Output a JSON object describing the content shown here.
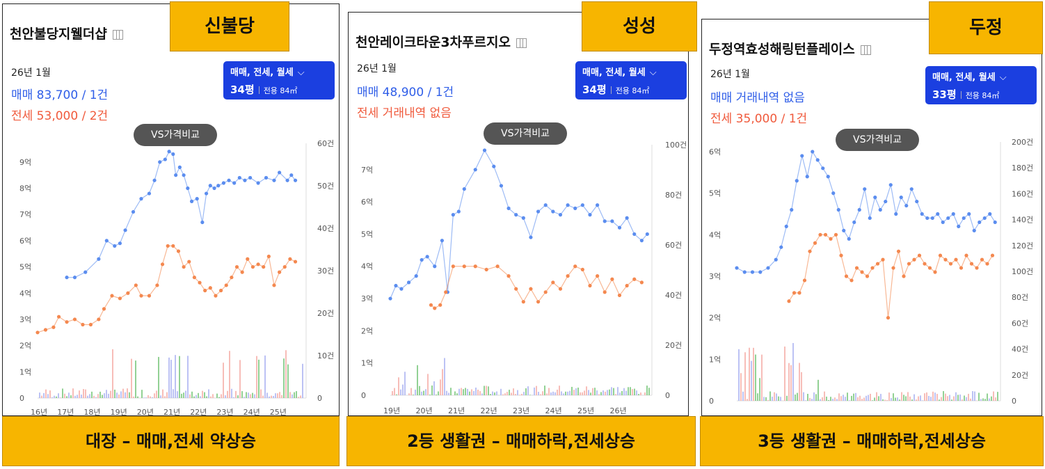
{
  "panels": [
    {
      "title": "천안불당지웰더샵",
      "tag": "신불당",
      "period": "26년 1월",
      "sale": "매매 83,700 / 1건",
      "jeonse": "전세 53,000 / 2건",
      "filter_type": "매매, 전세, 월세",
      "filter_py": "34평",
      "filter_area": "전용 84㎡",
      "vs": "VS가격비교",
      "caption": "대장 – 매매,전세 약상승"
    },
    {
      "title": "천안레이크타운3차푸르지오",
      "tag": "성성",
      "period": "26년 1월",
      "sale": "매매 48,900 / 1건",
      "jeonse": "전세 거래내역 없음",
      "filter_type": "매매, 전세, 월세",
      "filter_py": "34평",
      "filter_area": "전용 84㎡",
      "vs": "VS가격비교",
      "caption": "2등 생활권 – 매매하락,전세상승"
    },
    {
      "title": "두정역효성해링턴플레이스",
      "tag": "두정",
      "period": "26년 1월",
      "sale": "매매 거래내역 없음",
      "jeonse": "전세 35,000 / 1건",
      "filter_type": "매매, 전세, 월세",
      "filter_py": "33평",
      "filter_area": "전용 84㎡",
      "vs": "VS가격비교",
      "caption": "3등 생활권 – 매매하락,전세상승"
    }
  ],
  "chart_data": [
    {
      "type": "line",
      "colors": {
        "sale": "#5b8def",
        "jeonse": "#f4884f",
        "volume": [
          "#f4a7a0",
          "#a6aef0",
          "#6dc270"
        ]
      },
      "x_labels": [
        "16년",
        "17년",
        "18년",
        "19년",
        "20년",
        "21년",
        "22년",
        "23년",
        "24년",
        "25년"
      ],
      "x_range": [
        2016,
        2026
      ],
      "y_left_labels": [
        "0",
        "1억",
        "2억",
        "3억",
        "4억",
        "5억",
        "6억",
        "7억",
        "8억",
        "9억"
      ],
      "ylim_left": [
        0,
        9.5
      ],
      "y_right_labels": [
        "0",
        "10건",
        "20건",
        "30건",
        "40건",
        "50건",
        "60건"
      ],
      "ylim_right": [
        0,
        60
      ],
      "series": [
        {
          "name": "매매",
          "key": "sale",
          "x": [
            2017.1,
            2017.4,
            2017.8,
            2018.3,
            2018.6,
            2018.9,
            2019.1,
            2019.3,
            2019.6,
            2019.9,
            2020.2,
            2020.4,
            2020.6,
            2020.8,
            2020.95,
            2021.1,
            2021.2,
            2021.35,
            2021.5,
            2021.65,
            2021.8,
            2022.0,
            2022.2,
            2022.35,
            2022.5,
            2022.65,
            2022.8,
            2023.0,
            2023.2,
            2023.4,
            2023.6,
            2023.8,
            2024.0,
            2024.3,
            2024.6,
            2024.9,
            2025.1,
            2025.4,
            2025.55,
            2025.7
          ],
          "y": [
            4.6,
            4.6,
            4.8,
            5.3,
            6.0,
            5.8,
            5.9,
            6.4,
            7.1,
            7.6,
            7.8,
            8.3,
            9.0,
            9.1,
            9.4,
            9.3,
            8.5,
            8.8,
            8.5,
            8.0,
            7.5,
            7.6,
            6.7,
            7.8,
            8.1,
            8.0,
            8.1,
            8.2,
            8.3,
            8.2,
            8.4,
            8.3,
            8.4,
            8.2,
            8.4,
            8.3,
            8.6,
            8.3,
            8.5,
            8.3
          ]
        },
        {
          "name": "전세",
          "key": "jeonse",
          "x": [
            2016.0,
            2016.3,
            2016.6,
            2016.8,
            2017.1,
            2017.4,
            2017.7,
            2018.0,
            2018.3,
            2018.5,
            2018.8,
            2019.1,
            2019.4,
            2019.7,
            2019.9,
            2020.2,
            2020.5,
            2020.7,
            2020.9,
            2021.1,
            2021.3,
            2021.5,
            2021.7,
            2021.9,
            2022.1,
            2022.3,
            2022.5,
            2022.7,
            2022.9,
            2023.1,
            2023.3,
            2023.5,
            2023.7,
            2023.9,
            2024.1,
            2024.3,
            2024.5,
            2024.7,
            2024.9,
            2025.1,
            2025.3,
            2025.5,
            2025.7
          ],
          "y": [
            2.5,
            2.6,
            2.7,
            3.1,
            2.9,
            3.0,
            2.8,
            2.8,
            3.0,
            3.4,
            3.9,
            3.8,
            4.0,
            4.3,
            3.9,
            3.9,
            4.3,
            5.1,
            5.8,
            5.8,
            5.6,
            5.0,
            5.2,
            4.6,
            4.4,
            4.1,
            4.2,
            3.9,
            4.1,
            4.3,
            4.6,
            5.0,
            4.8,
            5.3,
            5.0,
            5.1,
            5.0,
            5.4,
            4.3,
            4.8,
            5.0,
            5.3,
            5.2
          ]
        }
      ]
    },
    {
      "type": "line",
      "colors": {
        "sale": "#5b8def",
        "jeonse": "#f4884f",
        "volume": [
          "#f4a7a0",
          "#a6aef0",
          "#6dc270"
        ]
      },
      "x_labels": [
        "19년",
        "20년",
        "21년",
        "22년",
        "23년",
        "24년",
        "25년",
        "26년"
      ],
      "x_range": [
        2019,
        2026
      ],
      "y_left_labels": [
        "0",
        "1억",
        "2억",
        "3억",
        "4억",
        "5억",
        "6억",
        "7억"
      ],
      "ylim_left": [
        0,
        7.6
      ],
      "y_right_labels": [
        "0",
        "20건",
        "40건",
        "60건",
        "80건",
        "100건"
      ],
      "ylim_right": [
        0,
        100
      ],
      "series": [
        {
          "name": "매매",
          "key": "sale",
          "x": [
            2019.0,
            2019.15,
            2019.3,
            2019.5,
            2019.7,
            2019.85,
            2020.0,
            2020.2,
            2020.4,
            2020.55,
            2020.7,
            2020.85,
            2021.0,
            2021.3,
            2021.55,
            2021.8,
            2022.0,
            2022.2,
            2022.4,
            2022.6,
            2022.8,
            2023.0,
            2023.2,
            2023.4,
            2023.6,
            2023.8,
            2024.0,
            2024.2,
            2024.4,
            2024.6,
            2024.8,
            2025.0,
            2025.2,
            2025.4,
            2025.6,
            2025.8,
            2025.95
          ],
          "y": [
            3.0,
            3.4,
            3.3,
            3.5,
            3.7,
            4.2,
            4.3,
            4.0,
            4.8,
            3.2,
            5.6,
            5.7,
            6.4,
            7.0,
            7.6,
            7.1,
            6.5,
            5.8,
            5.6,
            5.5,
            4.9,
            5.7,
            5.9,
            5.7,
            5.6,
            5.9,
            5.8,
            5.9,
            5.6,
            5.9,
            5.4,
            5.4,
            5.2,
            5.5,
            5.0,
            4.8,
            5.0
          ]
        },
        {
          "name": "전세",
          "key": "jeonse",
          "x": [
            2020.1,
            2020.2,
            2020.35,
            2020.5,
            2020.7,
            2021.0,
            2021.3,
            2021.6,
            2021.9,
            2022.2,
            2022.4,
            2022.6,
            2022.8,
            2023.0,
            2023.2,
            2023.4,
            2023.6,
            2023.8,
            2024.0,
            2024.2,
            2024.4,
            2024.6,
            2024.8,
            2025.0,
            2025.2,
            2025.4,
            2025.6,
            2025.8
          ],
          "y": [
            2.8,
            2.7,
            2.8,
            3.2,
            4.0,
            4.0,
            4.0,
            3.9,
            4.0,
            3.7,
            3.3,
            2.9,
            3.3,
            2.9,
            3.2,
            3.5,
            3.3,
            3.7,
            4.0,
            3.9,
            3.4,
            3.7,
            3.2,
            3.6,
            3.1,
            3.4,
            3.6,
            3.5
          ]
        }
      ]
    },
    {
      "type": "line",
      "colors": {
        "sale": "#5b8def",
        "jeonse": "#f4884f",
        "volume": [
          "#f4a7a0",
          "#a6aef0",
          "#6dc270"
        ]
      },
      "x_labels": [],
      "x_range": [
        2016,
        2026
      ],
      "y_left_labels": [
        "0",
        "1억",
        "2억",
        "3억",
        "4억",
        "5억",
        "6억"
      ],
      "ylim_left": [
        0,
        6.1
      ],
      "y_right_labels": [
        "0",
        "20건",
        "40건",
        "60건",
        "80건",
        "100건",
        "120건",
        "140건",
        "160건",
        "180건",
        "200건"
      ],
      "ylim_right": [
        0,
        200
      ],
      "series": [
        {
          "name": "매매",
          "key": "sale",
          "x": [
            2016.0,
            2016.3,
            2016.6,
            2016.9,
            2017.2,
            2017.5,
            2017.7,
            2017.9,
            2018.1,
            2018.3,
            2018.5,
            2018.7,
            2018.9,
            2019.1,
            2019.3,
            2019.5,
            2019.7,
            2019.9,
            2020.1,
            2020.3,
            2020.5,
            2020.7,
            2020.9,
            2021.1,
            2021.3,
            2021.5,
            2021.7,
            2021.9,
            2022.1,
            2022.3,
            2022.5,
            2022.7,
            2022.9,
            2023.1,
            2023.3,
            2023.5,
            2023.7,
            2023.9,
            2024.1,
            2024.3,
            2024.5,
            2024.7,
            2024.9,
            2025.1,
            2025.3,
            2025.5,
            2025.7,
            2025.9
          ],
          "y": [
            3.2,
            3.1,
            3.1,
            3.1,
            3.2,
            3.4,
            3.7,
            4.2,
            4.6,
            5.3,
            5.9,
            5.4,
            6.0,
            5.8,
            5.6,
            5.4,
            5.0,
            4.6,
            4.1,
            3.9,
            4.3,
            4.6,
            5.1,
            4.4,
            4.9,
            4.6,
            4.8,
            5.2,
            4.5,
            4.9,
            4.7,
            5.1,
            4.8,
            4.5,
            4.4,
            4.4,
            4.5,
            4.3,
            4.4,
            4.5,
            4.2,
            4.4,
            4.5,
            4.1,
            4.3,
            4.4,
            4.5,
            4.3
          ]
        },
        {
          "name": "전세",
          "key": "jeonse",
          "x": [
            2018.0,
            2018.2,
            2018.4,
            2018.6,
            2018.8,
            2019.0,
            2019.2,
            2019.4,
            2019.6,
            2019.8,
            2020.0,
            2020.2,
            2020.4,
            2020.6,
            2020.8,
            2021.0,
            2021.2,
            2021.4,
            2021.6,
            2021.8,
            2022.0,
            2022.2,
            2022.4,
            2022.6,
            2022.8,
            2023.0,
            2023.2,
            2023.4,
            2023.6,
            2023.8,
            2024.0,
            2024.2,
            2024.4,
            2024.6,
            2024.8,
            2025.0,
            2025.2,
            2025.4,
            2025.6,
            2025.8
          ],
          "y": [
            2.4,
            2.6,
            2.6,
            2.9,
            3.6,
            3.8,
            4.0,
            4.0,
            3.9,
            4.0,
            3.5,
            3.0,
            2.9,
            3.2,
            3.1,
            3.0,
            3.2,
            3.3,
            3.4,
            2.0,
            3.2,
            3.6,
            3.0,
            3.3,
            3.4,
            3.5,
            3.3,
            3.2,
            3.1,
            3.5,
            3.4,
            3.3,
            3.4,
            3.2,
            3.5,
            3.3,
            3.2,
            3.4,
            3.3,
            3.5
          ]
        }
      ]
    }
  ]
}
